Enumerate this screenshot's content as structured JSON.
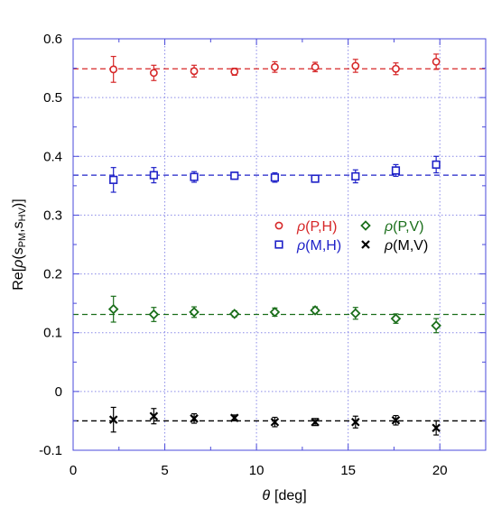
{
  "chart_data": {
    "type": "scatter",
    "xlabel_symbol": "θ",
    "xlabel_unit": "[deg]",
    "ylabel_prefix": "Re[",
    "ylabel_rho": "ρ",
    "ylabel_args": "(s",
    "ylabel_sub1": "PM",
    "ylabel_comma": ",s",
    "ylabel_sub2": "HV",
    "ylabel_suffix": ")]",
    "xlim": [
      0,
      22.5
    ],
    "ylim": [
      -0.1,
      0.6
    ],
    "xticks": [
      0,
      5,
      10,
      15,
      20
    ],
    "xtick_labels": [
      "0",
      "5",
      "10",
      "15",
      "20"
    ],
    "yticks": [
      -0.1,
      0,
      0.1,
      0.2,
      0.3,
      0.4,
      0.5,
      0.6
    ],
    "ytick_labels": [
      "-0.1",
      "0",
      "0.1",
      "0.2",
      "0.3",
      "0.4",
      "0.5",
      "0.6"
    ],
    "grid": true,
    "legend_position": "center-right",
    "x": [
      2.2,
      4.4,
      6.6,
      8.8,
      11.0,
      13.2,
      15.4,
      17.6,
      19.8
    ],
    "series": [
      {
        "key": "PH",
        "rho": "ρ",
        "name": "(P,H)",
        "color": "#d62728",
        "marker": "circle",
        "y": [
          0.548,
          0.542,
          0.545,
          0.544,
          0.552,
          0.552,
          0.554,
          0.549,
          0.561
        ],
        "err": [
          0.022,
          0.013,
          0.01,
          0.006,
          0.009,
          0.008,
          0.011,
          0.01,
          0.013
        ],
        "fit": 0.549
      },
      {
        "key": "MH",
        "rho": "ρ",
        "name": "(M,H)",
        "color": "#1f22c8",
        "marker": "square",
        "y": [
          0.36,
          0.368,
          0.365,
          0.367,
          0.364,
          0.362,
          0.366,
          0.376,
          0.386
        ],
        "err": [
          0.021,
          0.013,
          0.009,
          0.006,
          0.008,
          0.006,
          0.011,
          0.01,
          0.014
        ],
        "fit": 0.368
      },
      {
        "key": "PV",
        "rho": "ρ",
        "name": "(P,V)",
        "color": "#1a6e1a",
        "marker": "diamond",
        "y": [
          0.14,
          0.131,
          0.135,
          0.132,
          0.135,
          0.138,
          0.133,
          0.124,
          0.112
        ],
        "err": [
          0.022,
          0.012,
          0.009,
          0.005,
          0.007,
          0.006,
          0.01,
          0.008,
          0.012
        ],
        "fit": 0.131
      },
      {
        "key": "MV",
        "rho": "ρ",
        "name": "(M,V)",
        "color": "#000000",
        "marker": "cross",
        "y": [
          -0.048,
          -0.042,
          -0.046,
          -0.045,
          -0.052,
          -0.052,
          -0.052,
          -0.049,
          -0.062
        ],
        "err": [
          0.021,
          0.013,
          0.008,
          0.005,
          0.008,
          0.006,
          0.01,
          0.008,
          0.012
        ],
        "fit": -0.05
      }
    ]
  }
}
